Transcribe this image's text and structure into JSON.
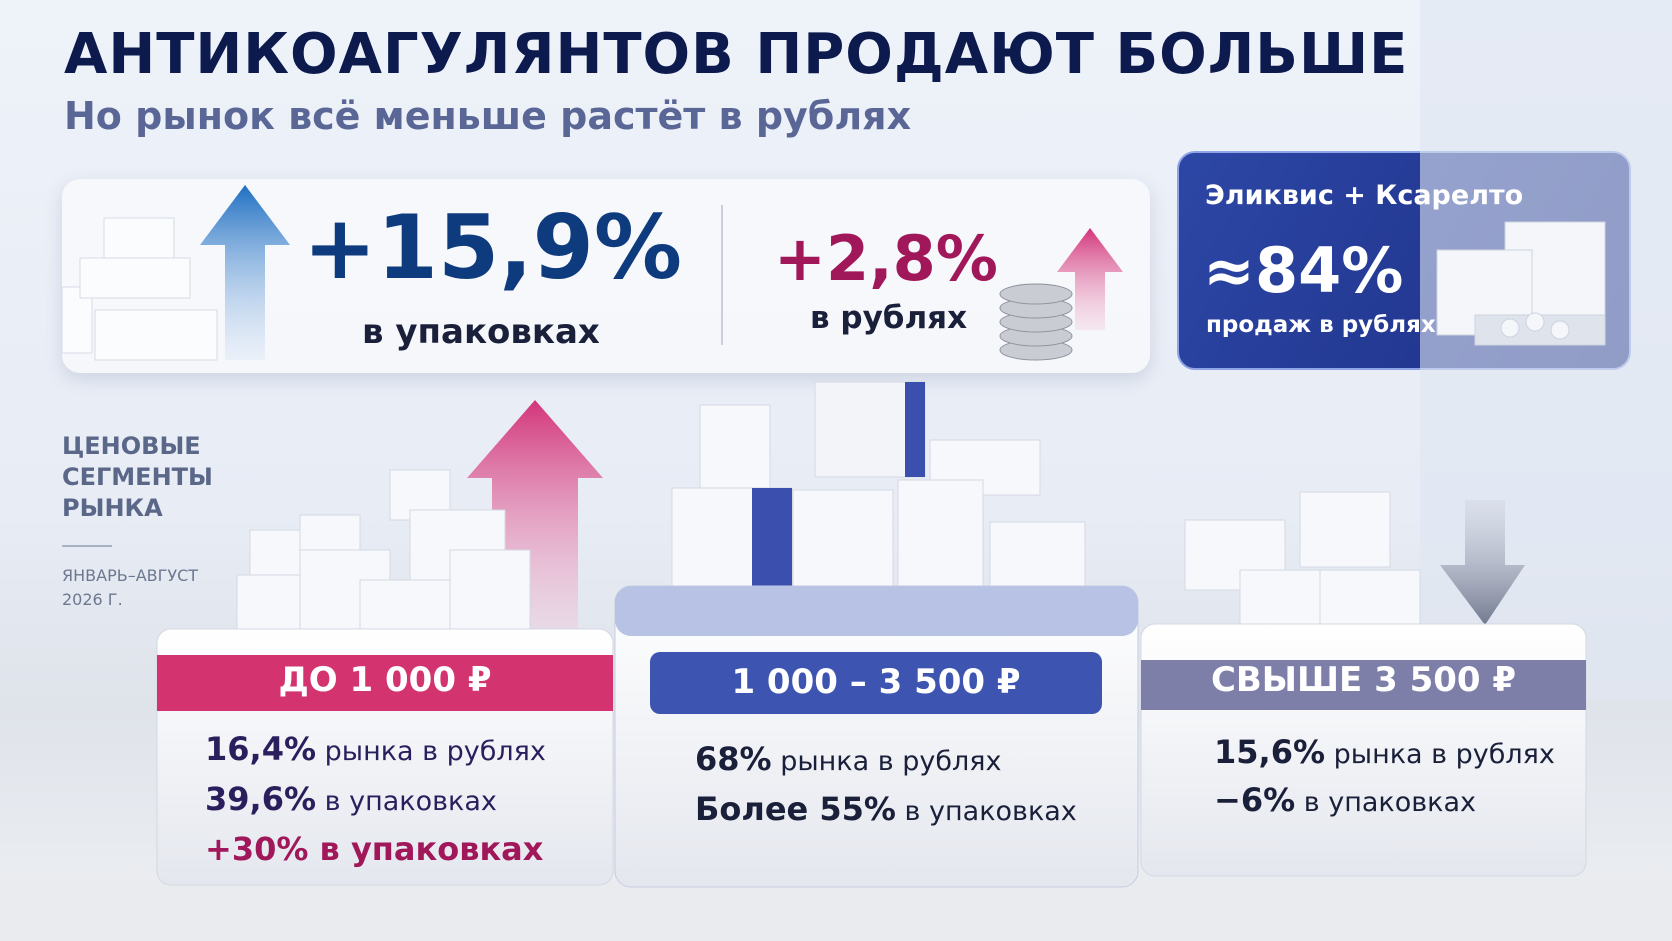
{
  "header": {
    "title": "АНТИКОАГУЛЯНТОВ ПРОДАЮТ БОЛЬШЕ",
    "subtitle": "Но рынок всё меньше растёт в рублях"
  },
  "kpis": [
    {
      "value": "+15,9%",
      "label": "в упаковках"
    },
    {
      "value": "+2,8%",
      "label": "в рублях"
    }
  ],
  "highlight": {
    "title": "Эликвис + Ксарелто",
    "value": "≈84%",
    "label": "продаж в рублях"
  },
  "side": {
    "title": [
      "ЦЕНОВЫЕ",
      "СЕГМЕНТЫ",
      "РЫНКА"
    ],
    "period": [
      "ЯНВАРЬ–АВГУСТ",
      "2026 Г."
    ]
  },
  "segments": [
    {
      "label": "ДО 1 000 ₽",
      "lines": [
        {
          "strong": "16,4%",
          "text": "рынка в рублях"
        },
        {
          "strong": "39,6%",
          "text": "в упаковках"
        },
        {
          "strong": "+30% в упаковках"
        }
      ]
    },
    {
      "label": "1 000 – 3 500 ₽",
      "lines": [
        {
          "strong": "68%",
          "text": "рынка в рублях"
        },
        {
          "strong": "Более 55%",
          "text": "в упаковках"
        }
      ]
    },
    {
      "label": "СВЫШЕ 3 500 ₽",
      "lines": [
        {
          "strong": "15,6%",
          "text": "рынка в рублях"
        },
        {
          "strong": "−6%",
          "text": "в упаковках"
        }
      ]
    }
  ]
}
